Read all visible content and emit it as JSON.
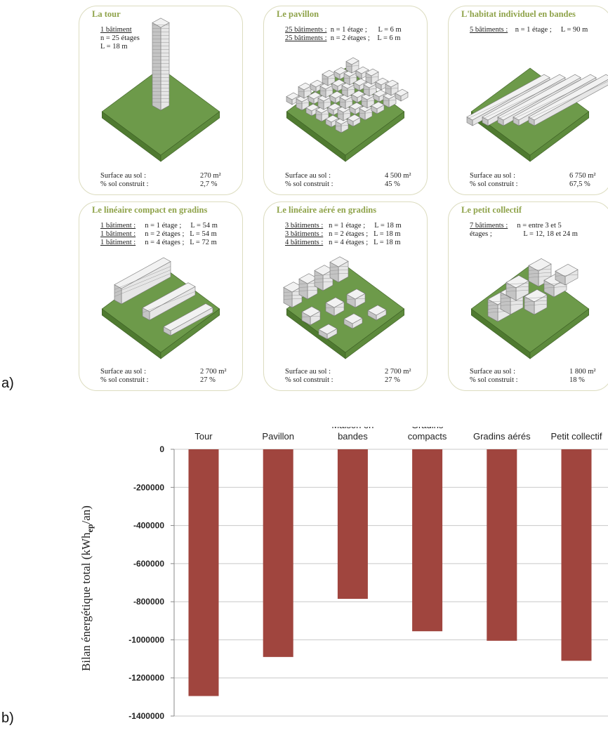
{
  "part_labels": {
    "a": "a)",
    "b": "b)"
  },
  "cards": [
    {
      "title": "La tour",
      "info": [
        [
          {
            "u": "1 bâtiment"
          },
          {
            "t": ""
          }
        ],
        [
          {
            "t": "n = 25 étages"
          }
        ],
        [
          {
            "t": "L = 18 m"
          }
        ]
      ],
      "surface_label": "Surface au sol :",
      "surface_value": "270 m²",
      "percent_label": "% sol construit :",
      "percent_value": "2,7 %"
    },
    {
      "title": "Le pavillon",
      "info": [
        [
          {
            "u": "25 bâtiments :"
          },
          {
            "t": "  n = 1 étage ;      L = 6 m"
          }
        ],
        [
          {
            "u": "25 bâtiments :"
          },
          {
            "t": "  n = 2 étages ;    L = 6 m"
          }
        ]
      ],
      "surface_label": "Surface au sol :",
      "surface_value": "4 500 m²",
      "percent_label": "% sol construit :",
      "percent_value": "45 %"
    },
    {
      "title": "L'habitat individuel en bandes",
      "info": [
        [
          {
            "u": "5 bâtiments :"
          },
          {
            "t": "    n = 1 étage ;     L = 90 m"
          }
        ]
      ],
      "surface_label": "Surface au sol :",
      "surface_value": "6 750 m²",
      "percent_label": "% sol construit :",
      "percent_value": "67,5 %"
    },
    {
      "title": "Le linéaire compact en gradins",
      "info": [
        [
          {
            "u": "1 bâtiment :"
          },
          {
            "t": "     n = 1 étage ;     L = 54 m"
          }
        ],
        [
          {
            "u": "1 bâtiment :"
          },
          {
            "t": "     n = 2 étages ;   L = 54 m"
          }
        ],
        [
          {
            "u": "1 bâtiment :"
          },
          {
            "t": "     n = 4 étages ;   L = 72 m"
          }
        ]
      ],
      "surface_label": "Surface au sol :",
      "surface_value": "2 700 m²",
      "percent_label": "% sol construit :",
      "percent_value": "27 %"
    },
    {
      "title": "Le linéaire aéré en gradins",
      "info": [
        [
          {
            "u": "3 bâtiments :"
          },
          {
            "t": "   n = 1 étage ;     L = 18 m"
          }
        ],
        [
          {
            "u": "3 bâtiments :"
          },
          {
            "t": "   n = 2 étages ;   L = 18 m"
          }
        ],
        [
          {
            "u": "4 bâtiments :"
          },
          {
            "t": "   n = 4 étages ;   L = 18 m"
          }
        ]
      ],
      "surface_label": "Surface au sol :",
      "surface_value": "2 700 m²",
      "percent_label": "% sol construit :",
      "percent_value": "27 %"
    },
    {
      "title": "Le petit collectif",
      "info": [
        [
          {
            "u": "7 bâtiments :"
          },
          {
            "t": "     n = entre 3 et 5"
          }
        ],
        [
          {
            "t": "étages ;                 L = 12, 18 et 24 m"
          }
        ]
      ],
      "surface_label": "Surface au sol :",
      "surface_value": "1 800 m²",
      "percent_label": "% sol construit :",
      "percent_value": "18 %"
    }
  ],
  "colors": {
    "ground_top": "#6d9a4a",
    "ground_side": "#4f7a30",
    "building": "#dcdcdc",
    "bar": "#a0453e",
    "grid": "#c8c8c8",
    "card_title": "#8fa34a"
  },
  "chart_data": {
    "type": "bar",
    "categories": [
      "Tour",
      "Pavillon",
      "Maison en\nbandes",
      "Gradins\ncompacts",
      "Gradins aérés",
      "Petit collectif"
    ],
    "values": [
      -1295000,
      -1090000,
      -785000,
      -955000,
      -1005000,
      -1110000
    ],
    "ylabel": "Bilan énergétique total (kWhep/an)",
    "ylim": [
      -1400000,
      0
    ],
    "yticks": [
      0,
      -200000,
      -400000,
      -600000,
      -800000,
      -1000000,
      -1200000,
      -1400000
    ],
    "xaxis_position": "top",
    "grid": true
  }
}
